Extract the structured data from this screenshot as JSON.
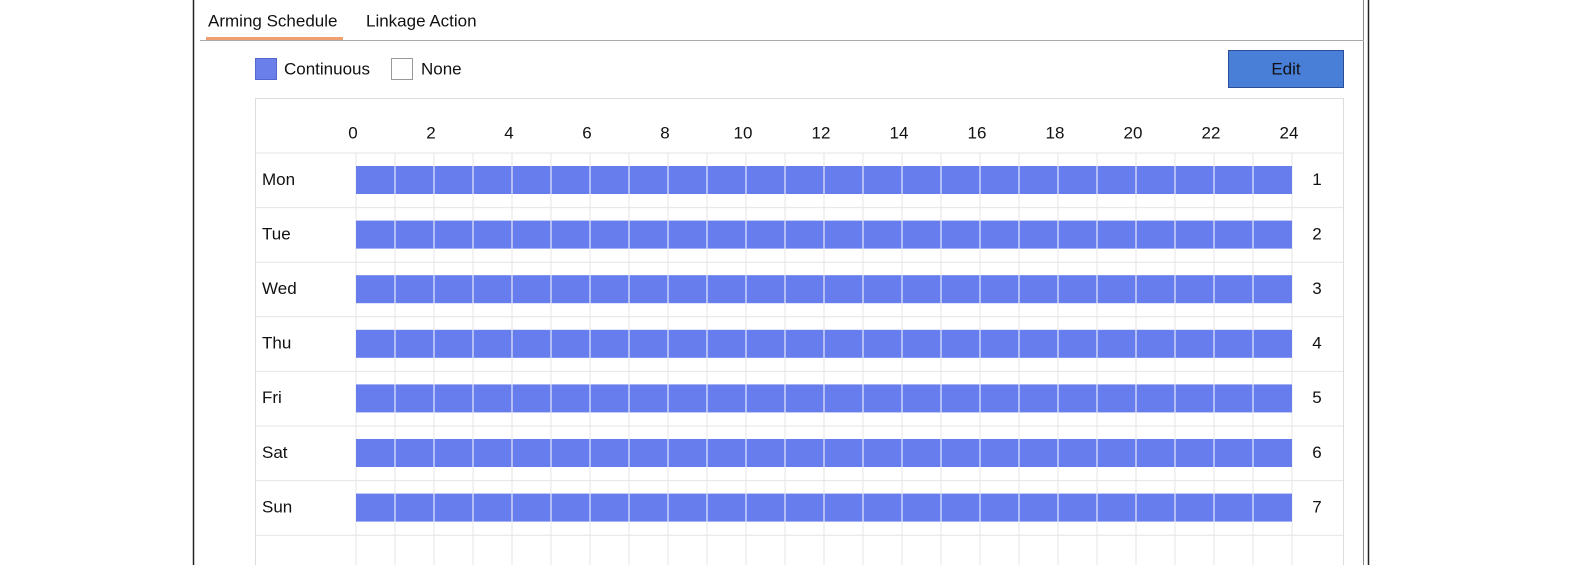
{
  "tabs": [
    "Arming Schedule",
    "Linkage Action"
  ],
  "legend": [
    "Continuous",
    "None"
  ],
  "edit_button": "Edit",
  "schedule": {
    "hours": [
      0,
      2,
      4,
      6,
      8,
      10,
      12,
      14,
      16,
      18,
      20,
      22,
      24
    ],
    "rows": [
      {
        "day": "Mon",
        "number": 1,
        "start": 0,
        "end": 24
      },
      {
        "day": "Tue",
        "number": 2,
        "start": 0,
        "end": 24
      },
      {
        "day": "Wed",
        "number": 3,
        "start": 0,
        "end": 24
      },
      {
        "day": "Thu",
        "number": 4,
        "start": 0,
        "end": 24
      },
      {
        "day": "Fri",
        "number": 5,
        "start": 0,
        "end": 24
      },
      {
        "day": "Sat",
        "number": 6,
        "start": 0,
        "end": 24
      },
      {
        "day": "Sun",
        "number": 7,
        "start": 0,
        "end": 24
      }
    ]
  }
}
